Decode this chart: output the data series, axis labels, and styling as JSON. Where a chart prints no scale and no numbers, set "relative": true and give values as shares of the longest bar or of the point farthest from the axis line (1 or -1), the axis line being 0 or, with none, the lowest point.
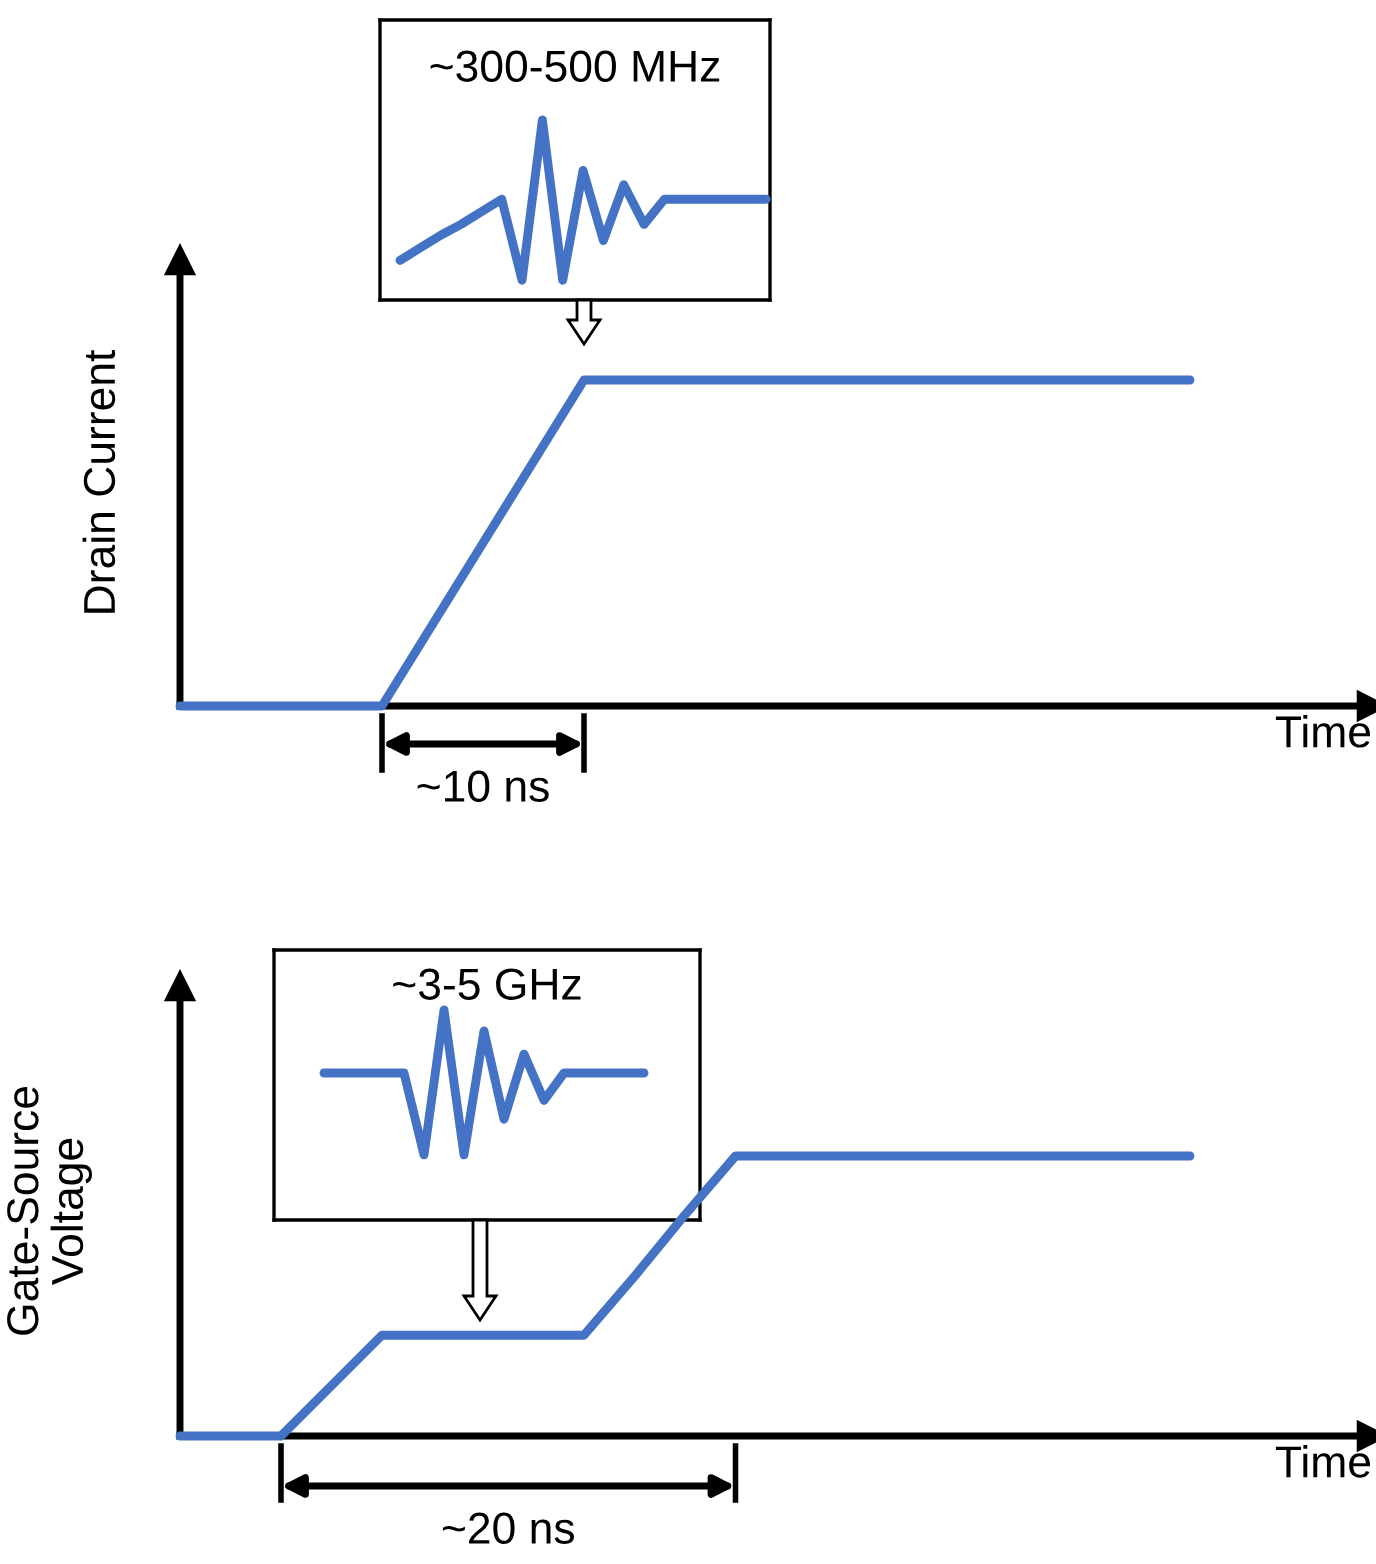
{
  "chart_data": [
    {
      "type": "line",
      "categories": [
        null,
        null,
        null,
        null,
        null,
        null,
        null,
        null,
        null,
        null,
        null,
        null,
        null,
        null,
        null,
        null,
        null,
        null,
        null
      ],
      "relative": true,
      "color": "#4472c4",
      "title": "~300-500 MHz",
      "values": [
        0.22,
        0.29,
        0.36,
        0.42,
        0.49,
        0.56,
        0.11,
        1,
        0.11,
        0.72,
        0.33,
        0.64,
        0.42,
        0.56,
        0.56,
        0.56,
        0.56,
        0.56,
        0.56
      ]
    },
    {
      "type": "line",
      "categories": [
        null,
        null,
        null,
        null,
        null,
        null,
        null,
        null,
        null,
        null,
        null,
        null,
        null,
        null,
        null,
        null,
        null,
        null,
        null,
        null,
        null
      ],
      "relative": true,
      "color": "#4472c4",
      "ylabel": "Drain Current",
      "xlabel": "Time",
      "values": [
        0,
        0,
        0,
        0,
        0,
        0.25,
        0.5,
        0.75,
        1,
        1,
        1,
        1,
        1,
        1,
        1,
        1,
        1,
        1,
        1,
        1,
        1
      ],
      "annotations": [
        "~10 ns"
      ]
    },
    {
      "type": "line",
      "categories": [
        null,
        null,
        null,
        null,
        null,
        null,
        null,
        null,
        null,
        null,
        null,
        null,
        null,
        null,
        null,
        null,
        null
      ],
      "relative": true,
      "color": "#4472c4",
      "title": "~3-5 GHz",
      "values": [
        0.7,
        0.7,
        0.7,
        0.7,
        0.7,
        0.31,
        1,
        0.31,
        0.9,
        0.48,
        0.79,
        0.57,
        0.7,
        0.7,
        0.7,
        0.7,
        0.7
      ]
    },
    {
      "type": "line",
      "categories": [
        null,
        null,
        null,
        null,
        null,
        null,
        null,
        null,
        null,
        null,
        null,
        null,
        null,
        null,
        null,
        null,
        null,
        null,
        null,
        null,
        null
      ],
      "relative": true,
      "color": "#4472c4",
      "ylabel": "Gate-Source\nVoltage",
      "xlabel": "Time",
      "values": [
        0,
        0,
        0,
        0.18,
        0.36,
        0.36,
        0.36,
        0.36,
        0.36,
        0.57,
        0.79,
        1,
        1,
        1,
        1,
        1,
        1,
        1,
        1,
        1,
        1
      ],
      "annotations": [
        "~20 ns"
      ]
    }
  ]
}
